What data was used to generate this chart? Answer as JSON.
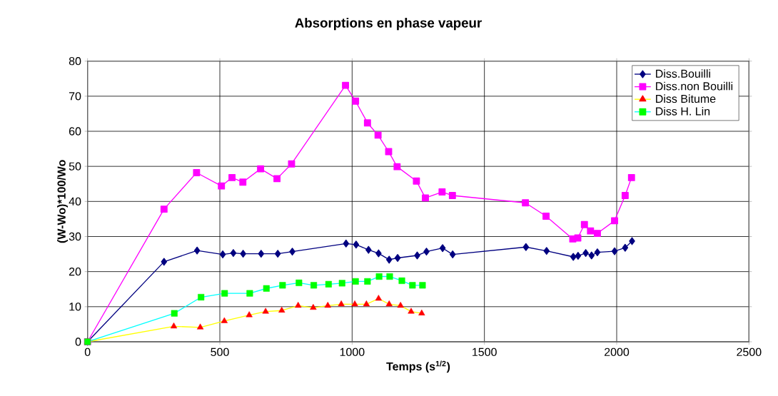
{
  "chart_data": {
    "type": "line",
    "title": "Absorptions en phase vapeur",
    "xlabel": "Temps (s$^{1/2}$)",
    "ylabel": "(W-Wo)*100/Wo",
    "xlim": [
      0,
      2500
    ],
    "xticks": [
      0,
      500,
      1000,
      1500,
      2000,
      2500
    ],
    "ylim": [
      0,
      80
    ],
    "yticks": [
      0,
      10,
      20,
      30,
      40,
      50,
      60,
      70,
      80
    ],
    "grid": true,
    "legend": "top right",
    "line_style": "solid",
    "series": [
      {
        "name": "Diss.Bouilli",
        "color": "#000080",
        "marker": "diamond",
        "x": [
          0,
          289,
          414,
          511,
          551,
          588,
          656,
          719,
          774,
          977,
          1015,
          1062,
          1100,
          1140,
          1172,
          1246,
          1281,
          1342,
          1380,
          1657,
          1735,
          1836,
          1854,
          1883,
          1905,
          1927,
          1992,
          2032,
          2058
        ],
        "values": [
          0,
          22.8,
          26.0,
          24.9,
          25.3,
          25.1,
          25.1,
          25.1,
          25.7,
          28.0,
          27.7,
          26.2,
          25.2,
          23.4,
          23.9,
          24.6,
          25.7,
          26.7,
          24.9,
          27.0,
          25.9,
          24.2,
          24.5,
          25.3,
          24.6,
          25.5,
          25.8,
          26.8,
          28.7
        ]
      },
      {
        "name": "Diss.non Bouilli",
        "color": "#ff00ff",
        "marker": "square",
        "x": [
          0,
          289,
          412,
          506,
          546,
          587,
          654,
          716,
          771,
          975,
          1013,
          1058,
          1098,
          1138,
          1170,
          1243,
          1277,
          1340,
          1379,
          1655,
          1733,
          1834,
          1853,
          1878,
          1901,
          1927,
          1992,
          2032,
          2056
        ],
        "values": [
          0,
          37.8,
          48.2,
          44.4,
          46.8,
          45.5,
          49.3,
          46.5,
          50.7,
          73.1,
          68.6,
          62.4,
          58.9,
          54.2,
          49.9,
          45.8,
          41.0,
          42.7,
          41.7,
          39.6,
          35.8,
          29.3,
          29.6,
          33.4,
          31.6,
          30.9,
          34.5,
          41.7,
          46.8
        ]
      },
      {
        "name": "Diss Bitume",
        "color": "#ffff00",
        "marker": "triangle",
        "x": [
          0,
          326,
          426,
          517,
          611,
          673,
          734,
          796,
          853,
          908,
          959,
          1010,
          1054,
          1100,
          1140,
          1183,
          1223,
          1263
        ],
        "values": [
          0,
          4.4,
          4.1,
          5.9,
          7.6,
          8.6,
          8.9,
          10.3,
          9.7,
          10.3,
          10.7,
          10.7,
          10.7,
          12.3,
          10.7,
          10.3,
          8.6,
          8.1
        ],
        "colors": [
          "#ff0000",
          "#ff0000",
          "#ff0000",
          "#ff0000",
          "#ff0000",
          "#ff0000",
          "#ff0000",
          "#ff0000",
          "#ff0000",
          "#ff0000",
          "#ff0000",
          "#ff0000",
          "#ff0000",
          "#ff0000",
          "#ff0000",
          "#ff0000",
          "#ff0000",
          "#ff0000"
        ]
      },
      {
        "name": "Diss H. Lin",
        "color": "#00ffff",
        "marker": "square",
        "x": [
          0,
          328,
          429,
          518,
          613,
          676,
          737,
          799,
          855,
          911,
          962,
          1013,
          1058,
          1102,
          1142,
          1188,
          1228,
          1266
        ],
        "values": [
          0,
          8.1,
          12.7,
          13.8,
          13.8,
          15.2,
          16.1,
          16.8,
          16.1,
          16.4,
          16.7,
          17.2,
          17.2,
          18.6,
          18.6,
          17.4,
          16.1,
          16.1
        ],
        "colors": [
          "#00ff00",
          "#00ff00",
          "#00ff00",
          "#00ff00",
          "#00ff00",
          "#00ff00",
          "#00ff00",
          "#00ff00",
          "#00ff00",
          "#00ff00",
          "#00ff00",
          "#00ff00",
          "#00ff00",
          "#00ff00",
          "#00ff00",
          "#00ff00",
          "#00ff00",
          "#00ff00"
        ]
      }
    ]
  }
}
